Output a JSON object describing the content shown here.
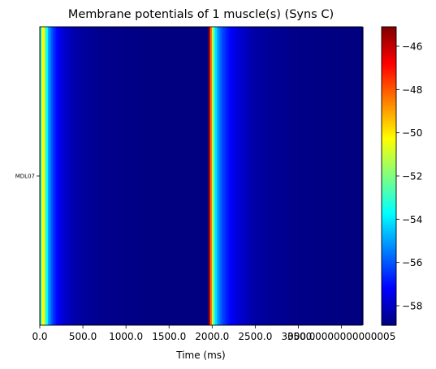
{
  "chart_data": {
    "type": "heatmap",
    "title": "Membrane potentials of 1 muscle(s) (Syns C)",
    "xlabel": "Time (ms)",
    "ylabel": "",
    "xlim": [
      0,
      3740
    ],
    "x_ticks": [
      {
        "value": 0,
        "label": "0.0"
      },
      {
        "value": 500,
        "label": "500.0"
      },
      {
        "value": 1000,
        "label": "1000.0"
      },
      {
        "value": 1500,
        "label": "1500.0"
      },
      {
        "value": 2000,
        "label": "2000.0"
      },
      {
        "value": 2500,
        "label": "2500.0"
      },
      {
        "value": 3000,
        "label": "3000.0"
      },
      {
        "value": 3500,
        "label": "3500.0000000000005"
      }
    ],
    "rows": [
      "MDL07"
    ],
    "colormap": "jet",
    "colorbar": {
      "vmin": -58.9,
      "vmax": -45.1,
      "ticks": [
        -46,
        -48,
        -50,
        -52,
        -54,
        -56,
        -58
      ],
      "tick_labels": [
        "−46",
        "−48",
        "−50",
        "−52",
        "−54",
        "−56",
        "−58"
      ]
    },
    "series": [
      {
        "row": "MDL07",
        "time_ms": [
          0,
          10,
          20,
          30,
          40,
          50,
          60,
          80,
          100,
          130,
          160,
          200,
          250,
          300,
          400,
          500,
          700,
          1000,
          1500,
          1960,
          1965,
          1975,
          1985,
          1995,
          2005,
          2015,
          2030,
          2050,
          2080,
          2120,
          2170,
          2230,
          2300,
          2400,
          2500,
          2700,
          3000,
          3740
        ],
        "potential_mV": [
          -56.5,
          -54.0,
          -51.5,
          -50.0,
          -49.5,
          -50.5,
          -52.0,
          -53.5,
          -54.8,
          -55.8,
          -56.5,
          -57.1,
          -57.6,
          -57.9,
          -58.3,
          -58.5,
          -58.7,
          -58.8,
          -58.9,
          -58.9,
          -45.5,
          -46.5,
          -48.0,
          -49.5,
          -51.0,
          -52.3,
          -53.5,
          -54.5,
          -55.4,
          -56.2,
          -56.8,
          -57.3,
          -57.7,
          -58.1,
          -58.4,
          -58.6,
          -58.8,
          -58.9
        ]
      }
    ],
    "grid": false
  }
}
